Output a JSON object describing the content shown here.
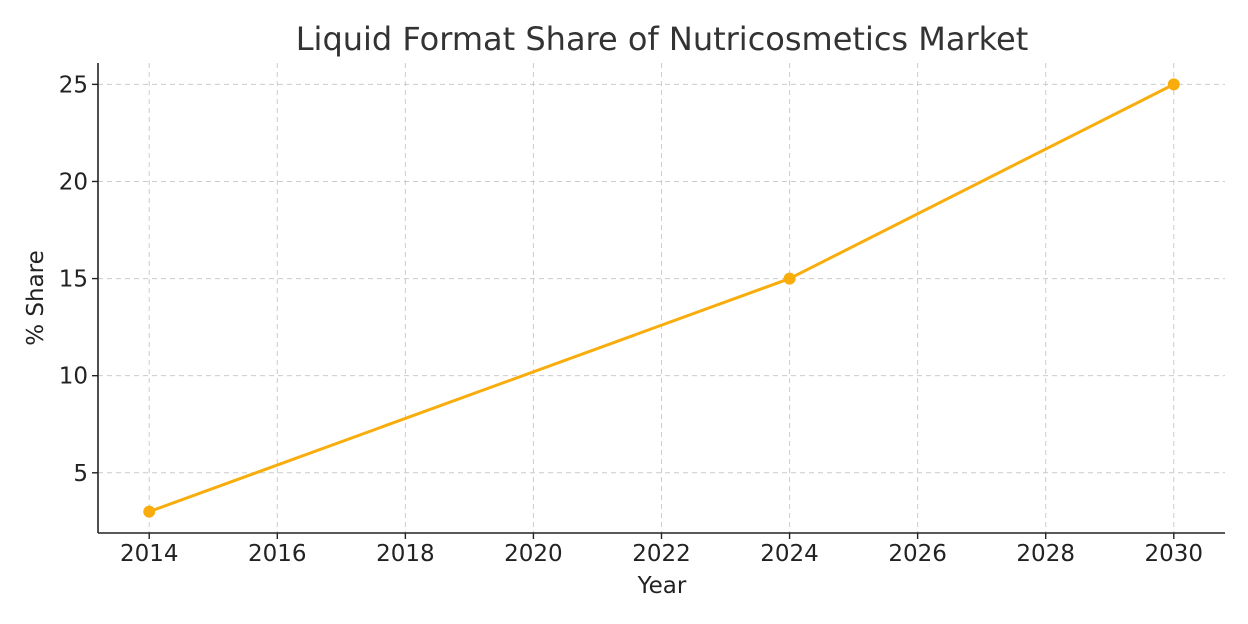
{
  "chart_data": {
    "type": "line",
    "title": "Liquid Format Share of Nutricosmetics Market",
    "xlabel": "Year",
    "ylabel": "% Share",
    "x": [
      2014,
      2024,
      2030
    ],
    "series": [
      {
        "values": [
          3,
          15,
          25
        ],
        "color": "#f9ad0d"
      }
    ],
    "xticks": [
      "2014",
      "2016",
      "2018",
      "2020",
      "2022",
      "2024",
      "2026",
      "2028",
      "2030"
    ],
    "yticks": [
      "5",
      "10",
      "15",
      "20",
      "25"
    ],
    "xlim": [
      2013.2,
      2030.8
    ],
    "ylim": [
      1.9,
      26.1
    ],
    "grid": true,
    "legend": "none"
  }
}
